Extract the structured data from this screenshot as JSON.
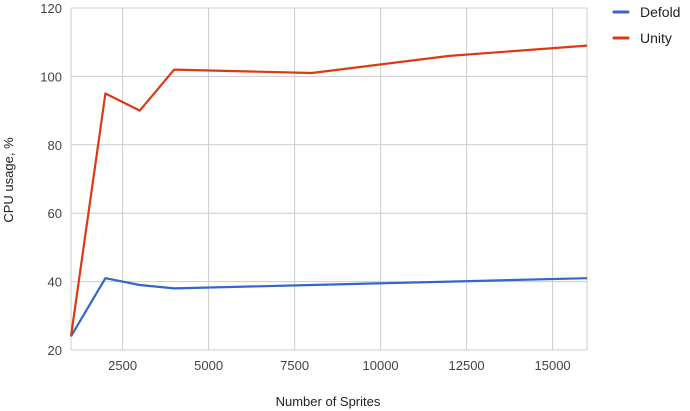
{
  "chart_data": {
    "type": "line",
    "xlabel": "Number of Sprites",
    "ylabel": "CPU usage, %",
    "xlim": [
      1000,
      16000
    ],
    "ylim": [
      20,
      120
    ],
    "x_ticks": [
      2500,
      5000,
      7500,
      10000,
      12500,
      15000
    ],
    "y_ticks": [
      20,
      40,
      60,
      80,
      100,
      120
    ],
    "grid": true,
    "legend_position": "top-right",
    "series": [
      {
        "name": "Defold",
        "color": "#3366cc",
        "points": [
          [
            1000,
            24
          ],
          [
            2000,
            41
          ],
          [
            3000,
            39
          ],
          [
            4000,
            38
          ],
          [
            8000,
            39
          ],
          [
            12000,
            40
          ],
          [
            16000,
            41
          ]
        ]
      },
      {
        "name": "Unity",
        "color": "#dc3912",
        "points": [
          [
            1000,
            24
          ],
          [
            2000,
            95
          ],
          [
            3000,
            90
          ],
          [
            4000,
            102
          ],
          [
            8000,
            101
          ],
          [
            12000,
            106
          ],
          [
            16000,
            109
          ]
        ]
      }
    ]
  }
}
